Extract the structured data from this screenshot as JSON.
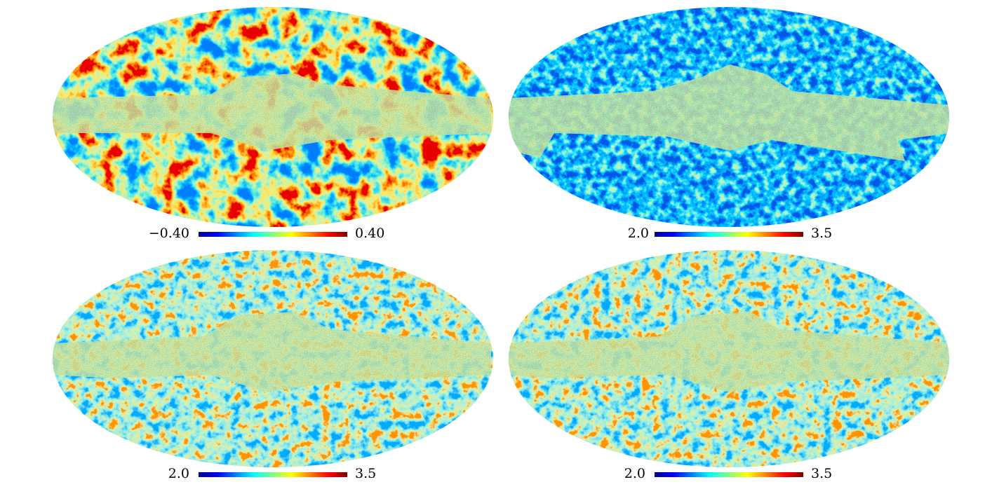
{
  "panels": [
    {
      "colorbar": {
        "min_label": "−0.40",
        "max_label": "0.40"
      }
    },
    {
      "colorbar": {
        "min_label": "2.0",
        "max_label": "3.5"
      }
    },
    {
      "colorbar": {
        "min_label": "2.0",
        "max_label": "3.5"
      }
    },
    {
      "colorbar": {
        "min_label": "2.0",
        "max_label": "3.5"
      }
    }
  ]
}
